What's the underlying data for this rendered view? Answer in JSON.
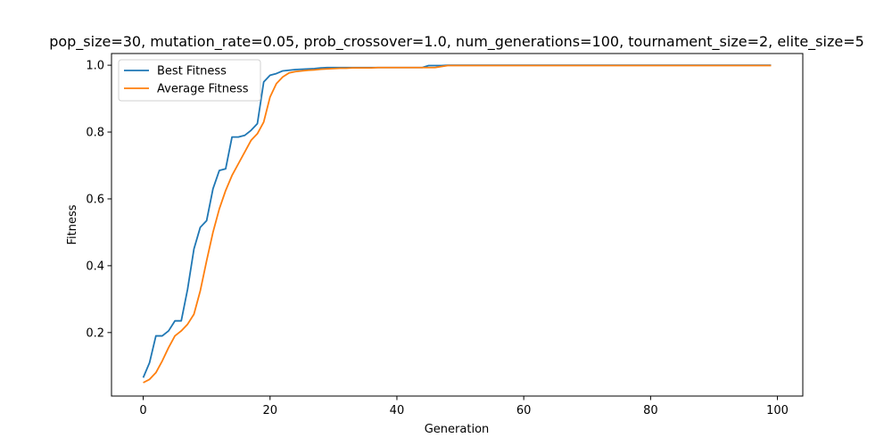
{
  "chart_data": {
    "type": "line",
    "title": "pop_size=30, mutation_rate=0.05, prob_crossover=1.0, num_generations=100, tournament_size=2, elite_size=5",
    "xlabel": "Generation",
    "ylabel": "Fitness",
    "xlim": [
      -5,
      104
    ],
    "ylim": [
      0.01,
      1.035
    ],
    "xticks": [
      0,
      20,
      40,
      60,
      80,
      100
    ],
    "yticks": [
      0.2,
      0.4,
      0.6,
      0.8,
      1.0
    ],
    "xtick_labels": [
      "0",
      "20",
      "40",
      "60",
      "80",
      "100"
    ],
    "ytick_labels": [
      "0.2",
      "0.4",
      "0.6",
      "0.8",
      "1.0"
    ],
    "grid": false,
    "legend_position": "top-left",
    "series": [
      {
        "name": "Best Fitness",
        "color": "#1f77b4",
        "values": [
          0.065,
          0.11,
          0.19,
          0.19,
          0.205,
          0.235,
          0.235,
          0.33,
          0.45,
          0.515,
          0.535,
          0.63,
          0.685,
          0.69,
          0.785,
          0.785,
          0.79,
          0.805,
          0.825,
          0.95,
          0.97,
          0.975,
          0.983,
          0.985,
          0.987,
          0.988,
          0.989,
          0.99,
          0.992,
          0.993,
          0.993,
          0.993,
          0.993,
          0.993,
          0.993,
          0.993,
          0.993,
          0.993,
          0.993,
          0.993,
          0.993,
          0.993,
          0.993,
          0.993,
          0.993,
          0.999,
          0.999,
          0.999,
          1.0,
          1.0,
          1.0,
          1.0,
          1.0,
          1.0,
          1.0,
          1.0,
          1.0,
          1.0,
          1.0,
          1.0,
          1.0,
          1.0,
          1.0,
          1.0,
          1.0,
          1.0,
          1.0,
          1.0,
          1.0,
          1.0,
          1.0,
          1.0,
          1.0,
          1.0,
          1.0,
          1.0,
          1.0,
          1.0,
          1.0,
          1.0,
          1.0,
          1.0,
          1.0,
          1.0,
          1.0,
          1.0,
          1.0,
          1.0,
          1.0,
          1.0,
          1.0,
          1.0,
          1.0,
          1.0,
          1.0,
          1.0,
          1.0,
          1.0,
          1.0,
          1.0
        ]
      },
      {
        "name": "Average Fitness",
        "color": "#ff7f0e",
        "values": [
          0.05,
          0.06,
          0.08,
          0.115,
          0.155,
          0.19,
          0.205,
          0.225,
          0.255,
          0.325,
          0.415,
          0.5,
          0.57,
          0.625,
          0.67,
          0.705,
          0.74,
          0.775,
          0.795,
          0.83,
          0.905,
          0.945,
          0.965,
          0.977,
          0.981,
          0.983,
          0.985,
          0.986,
          0.988,
          0.989,
          0.99,
          0.991,
          0.991,
          0.992,
          0.992,
          0.992,
          0.992,
          0.993,
          0.993,
          0.993,
          0.993,
          0.993,
          0.993,
          0.993,
          0.993,
          0.993,
          0.993,
          0.996,
          0.999,
          0.999,
          0.999,
          0.999,
          0.999,
          0.999,
          0.999,
          0.999,
          0.999,
          0.999,
          0.999,
          0.999,
          0.999,
          0.999,
          0.999,
          0.999,
          0.999,
          0.999,
          0.999,
          0.999,
          0.999,
          0.999,
          0.999,
          0.999,
          0.999,
          0.999,
          0.999,
          0.999,
          0.999,
          0.999,
          0.999,
          0.999,
          0.999,
          0.999,
          0.999,
          0.999,
          0.999,
          0.999,
          0.999,
          0.999,
          0.999,
          0.999,
          0.999,
          0.999,
          0.999,
          0.999,
          0.999,
          0.999,
          0.999,
          0.999,
          0.999,
          0.999
        ]
      }
    ]
  }
}
